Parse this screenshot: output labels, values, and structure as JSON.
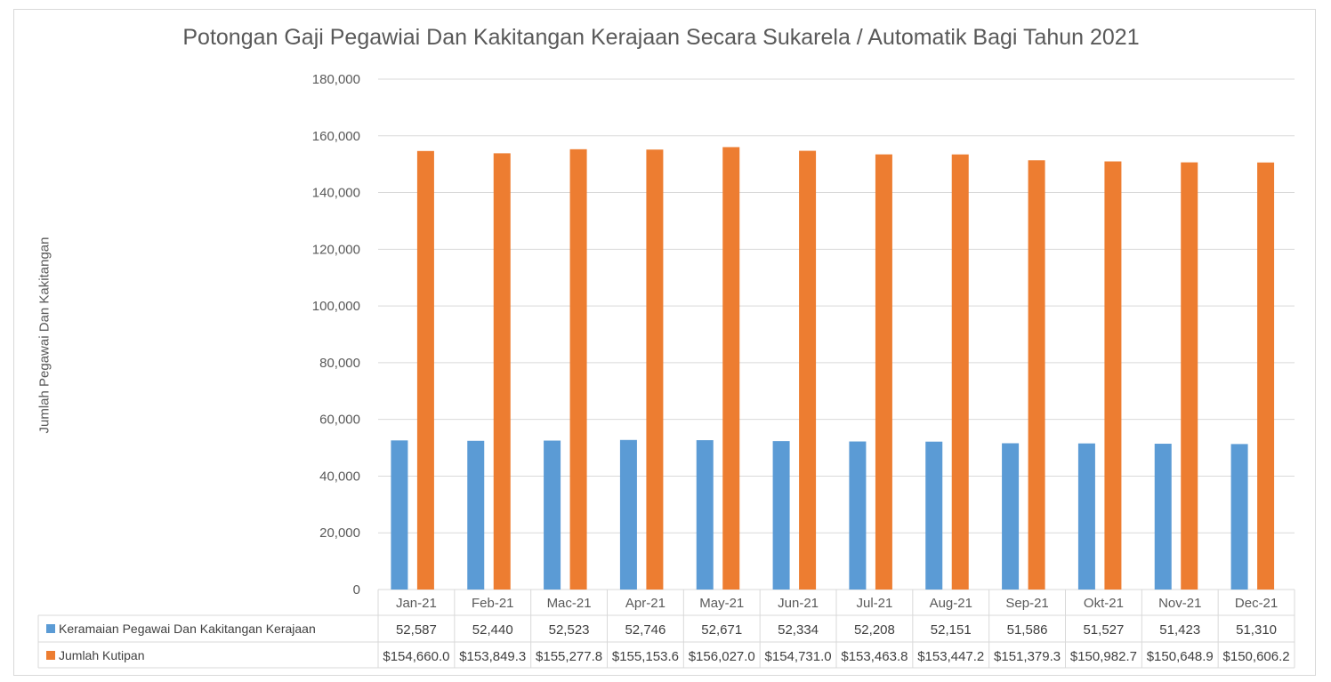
{
  "chart_data": {
    "type": "bar",
    "title": "Potongan Gaji Pegawiai Dan Kakitangan Kerajaan Secara Sukarela / Automatik Bagi Tahun 2021",
    "ylabel": "Jumlah Pegawai Dan Kakitangan",
    "xlabel": "",
    "ylim": [
      0,
      180000
    ],
    "yticks": [
      "0",
      "20,000",
      "40,000",
      "60,000",
      "80,000",
      "100,000",
      "120,000",
      "140,000",
      "160,000",
      "180,000"
    ],
    "grid": true,
    "legend": "data-table",
    "categories": [
      "Jan-21",
      "Feb-21",
      "Mac-21",
      "Apr-21",
      "May-21",
      "Jun-21",
      "Jul-21",
      "Aug-21",
      "Sep-21",
      "Okt-21",
      "Nov-21",
      "Dec-21"
    ],
    "series": [
      {
        "name": "Keramaian Pegawai Dan Kakitangan Kerajaan",
        "color": "#5b9bd5",
        "values": [
          52587,
          52440,
          52523,
          52746,
          52671,
          52334,
          52208,
          52151,
          51586,
          51527,
          51423,
          51310
        ],
        "labels": [
          "52,587",
          "52,440",
          "52,523",
          "52,746",
          "52,671",
          "52,334",
          "52,208",
          "52,151",
          "51,586",
          "51,527",
          "51,423",
          "51,310"
        ]
      },
      {
        "name": "Jumlah Kutipan",
        "color": "#ed7d31",
        "values": [
          154660.0,
          153849.3,
          155277.8,
          155153.6,
          156027.0,
          154731.0,
          153463.8,
          153447.2,
          151379.3,
          150982.7,
          150648.9,
          150606.2
        ],
        "labels": [
          "$154,660.0",
          "$153,849.3",
          "$155,277.8",
          "$155,153.6",
          "$156,027.0",
          "$154,731.0",
          "$153,463.8",
          "$153,447.2",
          "$151,379.3",
          "$150,982.7",
          "$150,648.9",
          "$150,606.2"
        ]
      }
    ]
  }
}
